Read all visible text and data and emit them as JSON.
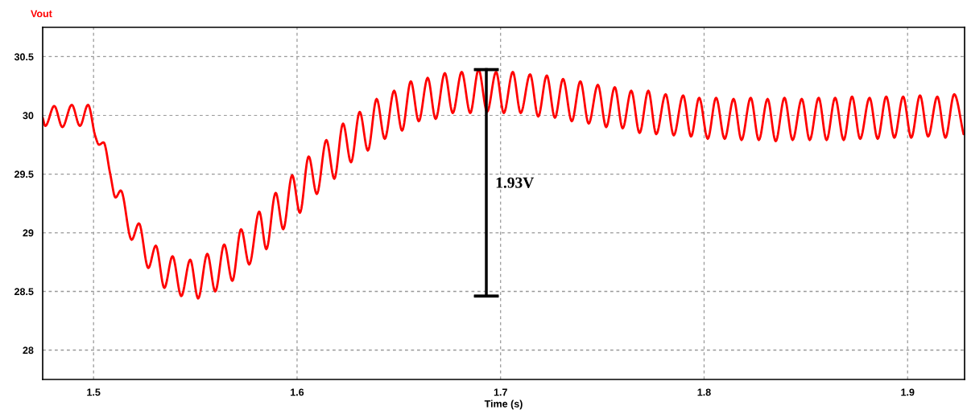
{
  "chart_data": {
    "type": "line",
    "title": "Vout",
    "xlabel": "Time (s)",
    "xlim": [
      1.475,
      1.928
    ],
    "ylim": [
      27.75,
      30.75
    ],
    "xticks": [
      1.5,
      1.6,
      1.7,
      1.8,
      1.9
    ],
    "yticks": [
      28,
      28.5,
      29,
      29.5,
      30,
      30.5
    ],
    "grid": true,
    "line_style": "solid",
    "marker": "none",
    "series": [
      {
        "color": "#ff0000",
        "x": [
          1.475,
          1.4763,
          1.4807,
          1.4847,
          1.4893,
          1.4933,
          1.4973,
          1.5009,
          1.5027,
          1.5049,
          1.5082,
          1.5108,
          1.5134,
          1.5187,
          1.5223,
          1.5269,
          1.5306,
          1.5348,
          1.5388,
          1.5431,
          1.5475,
          1.5514,
          1.5559,
          1.5598,
          1.5642,
          1.5682,
          1.5725,
          1.5765,
          1.5814,
          1.5849,
          1.5895,
          1.5932,
          1.5976,
          1.6014,
          1.6057,
          1.6097,
          1.6144,
          1.6183,
          1.6226,
          1.6265,
          1.6308,
          1.6348,
          1.6391,
          1.6431,
          1.6477,
          1.6516,
          1.6559,
          1.6598,
          1.6642,
          1.6681,
          1.6726,
          1.6765,
          1.6809,
          1.6851,
          1.6892,
          1.6934,
          1.6978,
          1.7016,
          1.706,
          1.7099,
          1.7145,
          1.7185,
          1.7227,
          1.7267,
          1.7307,
          1.735,
          1.7392,
          1.7433,
          1.7478,
          1.7519,
          1.7561,
          1.76,
          1.7642,
          1.7683,
          1.7726,
          1.7765,
          1.7811,
          1.7851,
          1.7897,
          1.7936,
          1.7976,
          1.8018,
          1.8059,
          1.8101,
          1.8145,
          1.8184,
          1.8229,
          1.8269,
          1.8312,
          1.8352,
          1.8395,
          1.8435,
          1.848,
          1.8519,
          1.8563,
          1.8602,
          1.8644,
          1.8686,
          1.8727,
          1.8767,
          1.8813,
          1.8853,
          1.8895,
          1.8935,
          1.8978,
          1.9018,
          1.9061,
          1.9101,
          1.9146,
          1.9186,
          1.9229,
          1.9275
        ],
        "values": [
          29.98,
          29.91,
          30.08,
          29.9,
          30.09,
          29.91,
          30.09,
          29.82,
          29.75,
          29.77,
          29.5,
          29.3,
          29.36,
          28.94,
          29.08,
          28.7,
          28.89,
          28.53,
          28.8,
          28.46,
          28.77,
          28.44,
          28.82,
          28.5,
          28.9,
          28.59,
          29.03,
          28.73,
          29.18,
          28.86,
          29.34,
          29.03,
          29.49,
          29.17,
          29.65,
          29.33,
          29.79,
          29.46,
          29.93,
          29.6,
          30.03,
          29.7,
          30.14,
          29.8,
          30.21,
          29.87,
          30.29,
          29.95,
          30.32,
          29.97,
          30.36,
          30.02,
          30.37,
          30.02,
          30.39,
          30.03,
          30.37,
          30.02,
          30.37,
          30.02,
          30.35,
          29.99,
          30.34,
          29.98,
          30.31,
          29.95,
          30.29,
          29.93,
          30.26,
          29.9,
          30.24,
          29.89,
          30.21,
          29.85,
          30.21,
          29.84,
          30.18,
          29.83,
          30.17,
          29.82,
          30.15,
          29.8,
          30.15,
          29.8,
          30.14,
          29.79,
          30.15,
          29.79,
          30.14,
          29.78,
          30.15,
          29.79,
          30.14,
          29.79,
          30.15,
          29.79,
          30.15,
          29.79,
          30.16,
          29.8,
          30.15,
          29.8,
          30.16,
          29.81,
          30.16,
          29.81,
          30.17,
          29.82,
          30.16,
          29.81,
          30.18,
          29.84
        ]
      },
      {
        "type": "line",
        "color": "#000000",
        "x": [
          1.693,
          1.693
        ],
        "values": [
          28.46,
          30.39
        ],
        "errors": [
          0,
          0
        ]
      }
    ],
    "annotations": [
      "1.93V"
    ]
  }
}
